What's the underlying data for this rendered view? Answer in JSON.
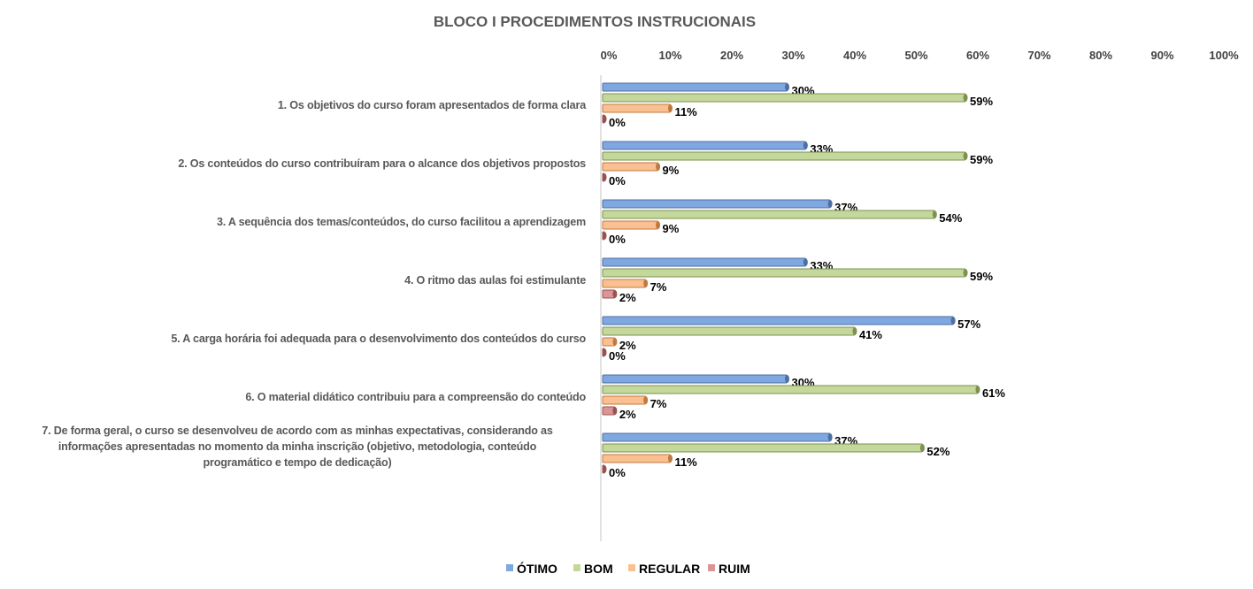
{
  "chart_data": {
    "type": "bar",
    "orientation": "horizontal",
    "title": "BLOCO I PROCEDIMENTOS INSTRUCIONAIS",
    "xlabel": "",
    "ylabel": "",
    "xlim": [
      0,
      100
    ],
    "x_ticks": [
      "0%",
      "10%",
      "20%",
      "30%",
      "40%",
      "50%",
      "60%",
      "70%",
      "80%",
      "90%",
      "100%"
    ],
    "x_axis_position": "top",
    "grid": false,
    "legend_position": "bottom",
    "categories": [
      [
        "1. Os objetivos do curso foram apresentados de forma clara"
      ],
      [
        "2. Os conteúdos do curso contribuíram para o alcance dos objetivos propostos"
      ],
      [
        "3. A sequência dos temas/conteúdos, do curso facilitou a aprendizagem"
      ],
      [
        "4. O ritmo das aulas foi estimulante"
      ],
      [
        "5. A carga horária foi adequada para o desenvolvimento dos conteúdos do curso"
      ],
      [
        "6. O material didático contribuiu para a compreensão do conteúdo"
      ],
      [
        "7. De forma geral, o curso se desenvolveu de acordo com as minhas expectativas, considerando as",
        "informações apresentadas no momento da minha inscrição (objetivo, metodologia, conteúdo",
        "programático e tempo de dedicação)"
      ]
    ],
    "series": [
      {
        "name": "ÓTIMO",
        "color": "#7fa7e0",
        "edge": "#4f6fa0",
        "values": [
          30,
          33,
          37,
          33,
          57,
          30,
          37
        ]
      },
      {
        "name": "BOM",
        "color": "#c4d89c",
        "edge": "#7d9150",
        "values": [
          59,
          59,
          54,
          59,
          41,
          61,
          52
        ]
      },
      {
        "name": "REGULAR",
        "color": "#fbc091",
        "edge": "#c07a40",
        "values": [
          11,
          9,
          9,
          7,
          2,
          7,
          11
        ]
      },
      {
        "name": "RUIM",
        "color": "#d99695",
        "edge": "#9a5250",
        "values": [
          0,
          0,
          0,
          2,
          0,
          2,
          0
        ]
      }
    ],
    "value_suffix": "%"
  }
}
